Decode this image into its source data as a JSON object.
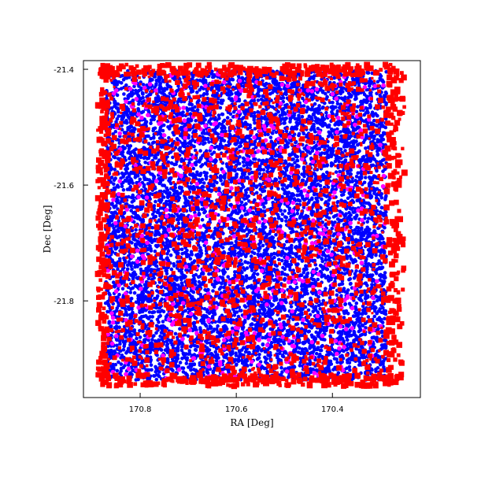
{
  "chart_data": {
    "type": "scatter",
    "title": "",
    "xlabel": "RA [Deg]",
    "ylabel": "Dec [Deg]",
    "xlim": [
      170.918,
      170.217
    ],
    "ylim": [
      -21.967,
      -21.385
    ],
    "x_reversed": true,
    "x_ticks": [
      {
        "value": 170.8,
        "label": "170.8"
      },
      {
        "value": 170.6,
        "label": "170.6"
      },
      {
        "value": 170.4,
        "label": "170.4"
      }
    ],
    "y_ticks": [
      {
        "value": -21.4,
        "label": "-21.4"
      },
      {
        "value": -21.6,
        "label": "-21.6"
      },
      {
        "value": -21.8,
        "label": "-21.8"
      }
    ],
    "grid": false,
    "legend": "none",
    "field": {
      "ra_min": 170.278,
      "ra_max": 170.882,
      "dec_min": -21.942,
      "dec_max": -21.397
    },
    "series": [
      {
        "color": "#0000ff",
        "marker": "circle",
        "approx_count": 9000
      },
      {
        "color": "#ff00ff",
        "marker": "circle",
        "approx_count": 500
      },
      {
        "color": "#ff0000",
        "marker": "square",
        "approx_count": 2500
      }
    ]
  }
}
